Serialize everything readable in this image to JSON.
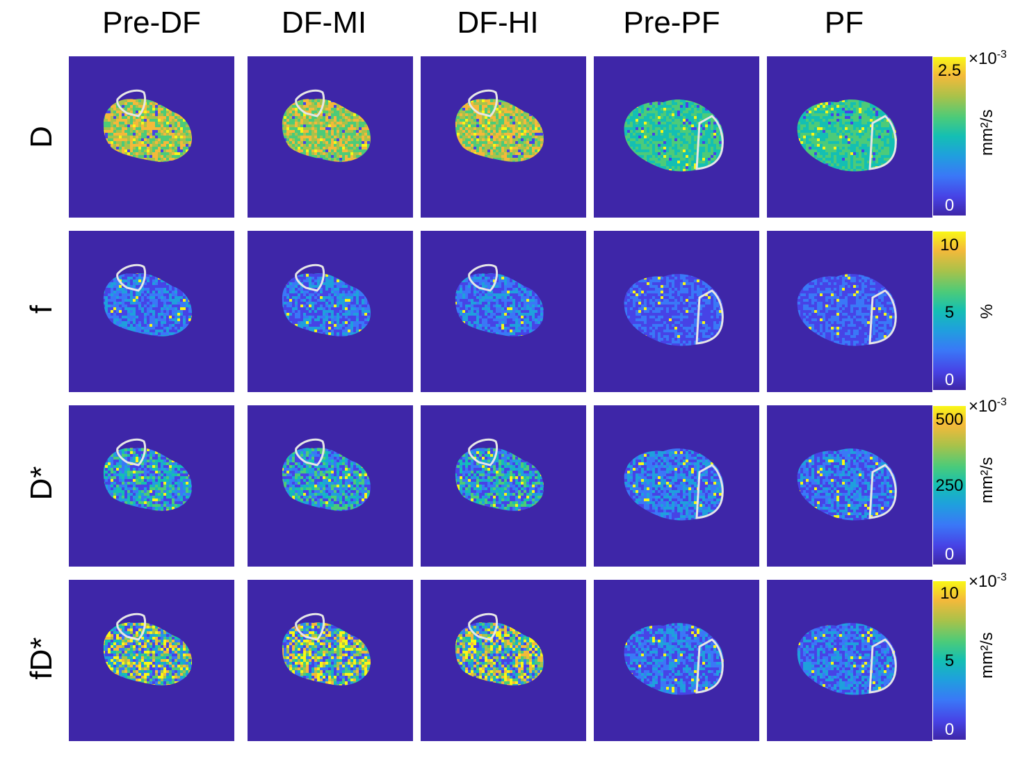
{
  "columns": [
    "Pre-DF",
    "DF-MI",
    "DF-HI",
    "Pre-PF",
    "PF"
  ],
  "rows": [
    {
      "label": "D",
      "colorbar": {
        "top": "2.5",
        "mid": "",
        "bottom": "0"
      },
      "unit": "mm²/s",
      "scale": "×10",
      "exponent": "-3"
    },
    {
      "label": "f",
      "colorbar": {
        "top": "10",
        "mid": "5",
        "bottom": "0"
      },
      "unit": "%",
      "scale": "",
      "exponent": ""
    },
    {
      "label": "D*",
      "colorbar": {
        "top": "500",
        "mid": "250",
        "bottom": "0"
      },
      "unit": "mm²/s",
      "scale": "×10",
      "exponent": "-3"
    },
    {
      "label": "fD*",
      "colorbar": {
        "top": "10",
        "mid": "5",
        "bottom": "0"
      },
      "unit": "mm²/s",
      "scale": "×10",
      "exponent": "-3"
    }
  ],
  "colors": {
    "background": "#3e26a8",
    "roi_outline": "#e6e6e6",
    "colormap": [
      "#3e26a8",
      "#4743e6",
      "#3a78f7",
      "#1fa0dd",
      "#14bfb3",
      "#4ccb79",
      "#a8c24a",
      "#f4b93a",
      "#f9f716"
    ]
  }
}
